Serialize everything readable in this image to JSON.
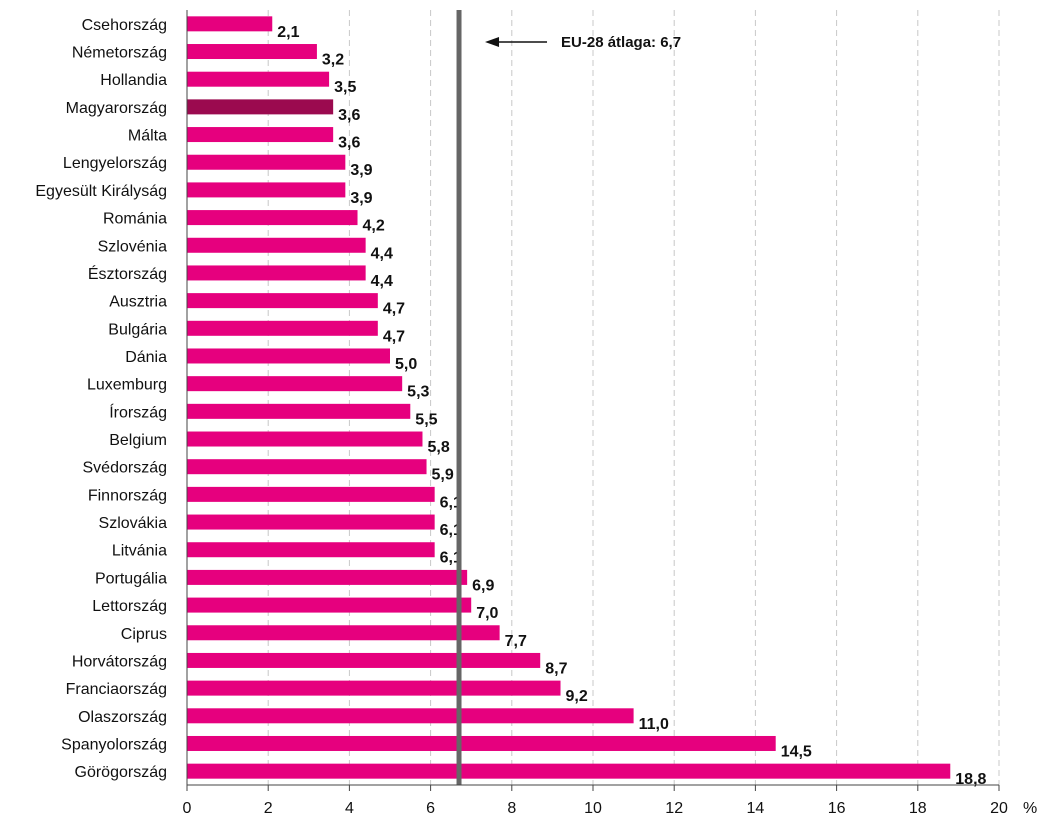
{
  "chart_data": {
    "type": "bar",
    "orientation": "horizontal",
    "categories": [
      "Csehország",
      "Németország",
      "Hollandia",
      "Magyarország",
      "Málta",
      "Lengyelország",
      "Egyesült Királyság",
      "Románia",
      "Szlovénia",
      "Észtország",
      "Ausztria",
      "Bulgária",
      "Dánia",
      "Luxemburg",
      "Írország",
      "Belgium",
      "Svédország",
      "Finnország",
      "Szlovákia",
      "Litvánia",
      "Portugália",
      "Lettország",
      "Ciprus",
      "Horvátország",
      "Franciaország",
      "Olaszország",
      "Spanyolország",
      "Görögország"
    ],
    "values": [
      2.1,
      3.2,
      3.5,
      3.6,
      3.6,
      3.9,
      3.9,
      4.2,
      4.4,
      4.4,
      4.7,
      4.7,
      5.0,
      5.3,
      5.5,
      5.8,
      5.9,
      6.1,
      6.1,
      6.1,
      6.9,
      7.0,
      7.7,
      8.7,
      9.2,
      11.0,
      14.5,
      18.8
    ],
    "value_labels": [
      "2,1",
      "3,2",
      "3,5",
      "3,6",
      "3,6",
      "3,9",
      "3,9",
      "4,2",
      "4,4",
      "4,4",
      "4,7",
      "4,7",
      "5,0",
      "5,3",
      "5,5",
      "5,8",
      "5,9",
      "6,1",
      "6,1",
      "6,1",
      "6,9",
      "7,0",
      "7,7",
      "8,7",
      "9,2",
      "11,0",
      "14,5",
      "18,8"
    ],
    "xlim": [
      0,
      20
    ],
    "xticks": [
      0,
      2,
      4,
      6,
      8,
      10,
      12,
      14,
      16,
      18,
      20
    ],
    "x_unit": "%",
    "grid": "vertical dashed",
    "colors": {
      "bar": "#E6007E",
      "highlight": "#9B0A4F",
      "average_line": "#666666"
    },
    "highlight_category": "Magyarország",
    "average": {
      "value": 6.7,
      "label": "EU-28 átlaga: 6,7"
    }
  }
}
